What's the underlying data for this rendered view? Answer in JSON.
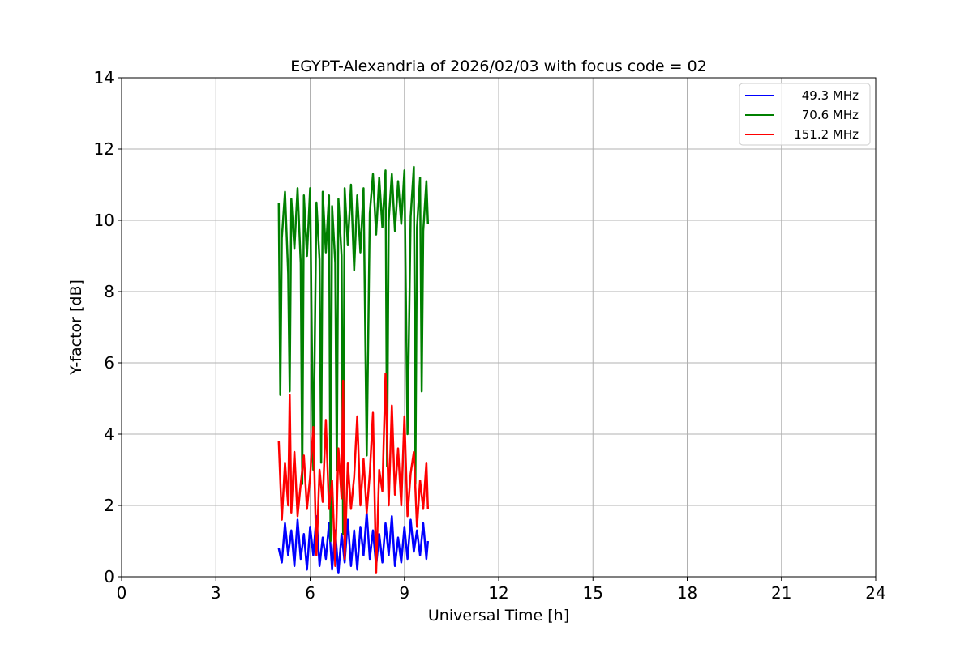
{
  "chart_data": {
    "type": "line",
    "title": "EGYPT-Alexandria of 2026/02/03 with focus code = 02",
    "xlabel": "Universal Time [h]",
    "ylabel": "Y-factor [dB]",
    "xlim": [
      0,
      24
    ],
    "ylim": [
      0,
      14
    ],
    "xticks": [
      0,
      3,
      6,
      9,
      12,
      15,
      18,
      21,
      24
    ],
    "yticks": [
      0,
      2,
      4,
      6,
      8,
      10,
      12,
      14
    ],
    "grid": true,
    "legend_position": "top-right",
    "series": [
      {
        "name": "49.3 MHz",
        "color": "#0000ff",
        "x": [
          5.0,
          5.1,
          5.2,
          5.3,
          5.4,
          5.5,
          5.6,
          5.7,
          5.8,
          5.9,
          6.0,
          6.1,
          6.2,
          6.3,
          6.4,
          6.5,
          6.6,
          6.7,
          6.8,
          6.9,
          7.0,
          7.1,
          7.2,
          7.3,
          7.4,
          7.5,
          7.6,
          7.7,
          7.8,
          7.9,
          8.0,
          8.1,
          8.2,
          8.3,
          8.4,
          8.5,
          8.6,
          8.7,
          8.8,
          8.9,
          9.0,
          9.1,
          9.2,
          9.3,
          9.4,
          9.5,
          9.6,
          9.7,
          9.75
        ],
        "y": [
          0.8,
          0.4,
          1.5,
          0.6,
          1.3,
          0.3,
          1.6,
          0.5,
          1.2,
          0.2,
          1.4,
          0.6,
          1.7,
          0.3,
          1.1,
          0.5,
          1.5,
          0.2,
          1.3,
          0.1,
          1.2,
          0.4,
          1.6,
          0.3,
          1.3,
          0.2,
          1.4,
          0.6,
          1.8,
          0.5,
          1.3,
          0.3,
          1.2,
          0.4,
          1.5,
          0.6,
          1.7,
          0.3,
          1.1,
          0.4,
          1.4,
          0.5,
          1.6,
          0.7,
          1.3,
          0.6,
          1.5,
          0.5,
          1.0
        ]
      },
      {
        "name": "70.6 MHz",
        "color": "#008000",
        "x": [
          5.0,
          5.05,
          5.1,
          5.2,
          5.3,
          5.35,
          5.4,
          5.5,
          5.6,
          5.7,
          5.75,
          5.8,
          5.9,
          6.0,
          6.1,
          6.2,
          6.3,
          6.35,
          6.4,
          6.5,
          6.6,
          6.65,
          6.7,
          6.8,
          6.85,
          6.9,
          7.0,
          7.05,
          7.1,
          7.2,
          7.3,
          7.4,
          7.5,
          7.6,
          7.7,
          7.8,
          7.9,
          8.0,
          8.1,
          8.2,
          8.3,
          8.4,
          8.45,
          8.5,
          8.6,
          8.7,
          8.8,
          8.9,
          9.0,
          9.1,
          9.2,
          9.3,
          9.35,
          9.4,
          9.5,
          9.55,
          9.6,
          9.7,
          9.75
        ],
        "y": [
          10.5,
          5.1,
          9.5,
          10.8,
          8.5,
          5.2,
          10.6,
          9.2,
          10.9,
          8.8,
          2.6,
          10.7,
          9.0,
          10.9,
          3.0,
          10.5,
          8.9,
          3.2,
          10.8,
          9.1,
          10.7,
          1.0,
          10.4,
          8.8,
          3.0,
          10.6,
          9.0,
          1.2,
          10.9,
          9.3,
          11.0,
          8.6,
          10.7,
          9.1,
          10.9,
          3.4,
          10.2,
          11.3,
          9.6,
          11.2,
          9.8,
          11.4,
          3.1,
          10.0,
          11.3,
          9.7,
          11.1,
          9.9,
          11.4,
          4.0,
          10.1,
          11.5,
          2.6,
          9.8,
          11.2,
          5.2,
          9.7,
          11.1,
          9.9
        ]
      },
      {
        "name": "151.2 MHz",
        "color": "#ff0000",
        "x": [
          5.0,
          5.1,
          5.2,
          5.3,
          5.35,
          5.4,
          5.5,
          5.6,
          5.7,
          5.8,
          5.9,
          6.0,
          6.1,
          6.2,
          6.3,
          6.4,
          6.5,
          6.6,
          6.7,
          6.8,
          6.9,
          7.0,
          7.05,
          7.1,
          7.2,
          7.3,
          7.4,
          7.5,
          7.6,
          7.7,
          7.8,
          7.9,
          8.0,
          8.1,
          8.2,
          8.3,
          8.4,
          8.5,
          8.6,
          8.7,
          8.8,
          8.9,
          9.0,
          9.1,
          9.2,
          9.3,
          9.4,
          9.5,
          9.6,
          9.7,
          9.75
        ],
        "y": [
          3.8,
          1.6,
          3.2,
          2.0,
          5.1,
          1.8,
          3.5,
          1.7,
          2.6,
          3.4,
          1.9,
          2.8,
          4.2,
          0.6,
          3.0,
          2.1,
          4.4,
          1.9,
          2.7,
          0.3,
          3.6,
          2.2,
          5.5,
          0.5,
          3.2,
          1.9,
          2.8,
          4.5,
          2.0,
          3.3,
          1.8,
          2.9,
          4.6,
          0.1,
          3.0,
          2.4,
          5.7,
          2.0,
          4.8,
          2.3,
          3.6,
          2.0,
          4.5,
          1.7,
          2.9,
          3.5,
          1.4,
          2.7,
          1.9,
          3.2,
          1.9
        ]
      }
    ]
  }
}
